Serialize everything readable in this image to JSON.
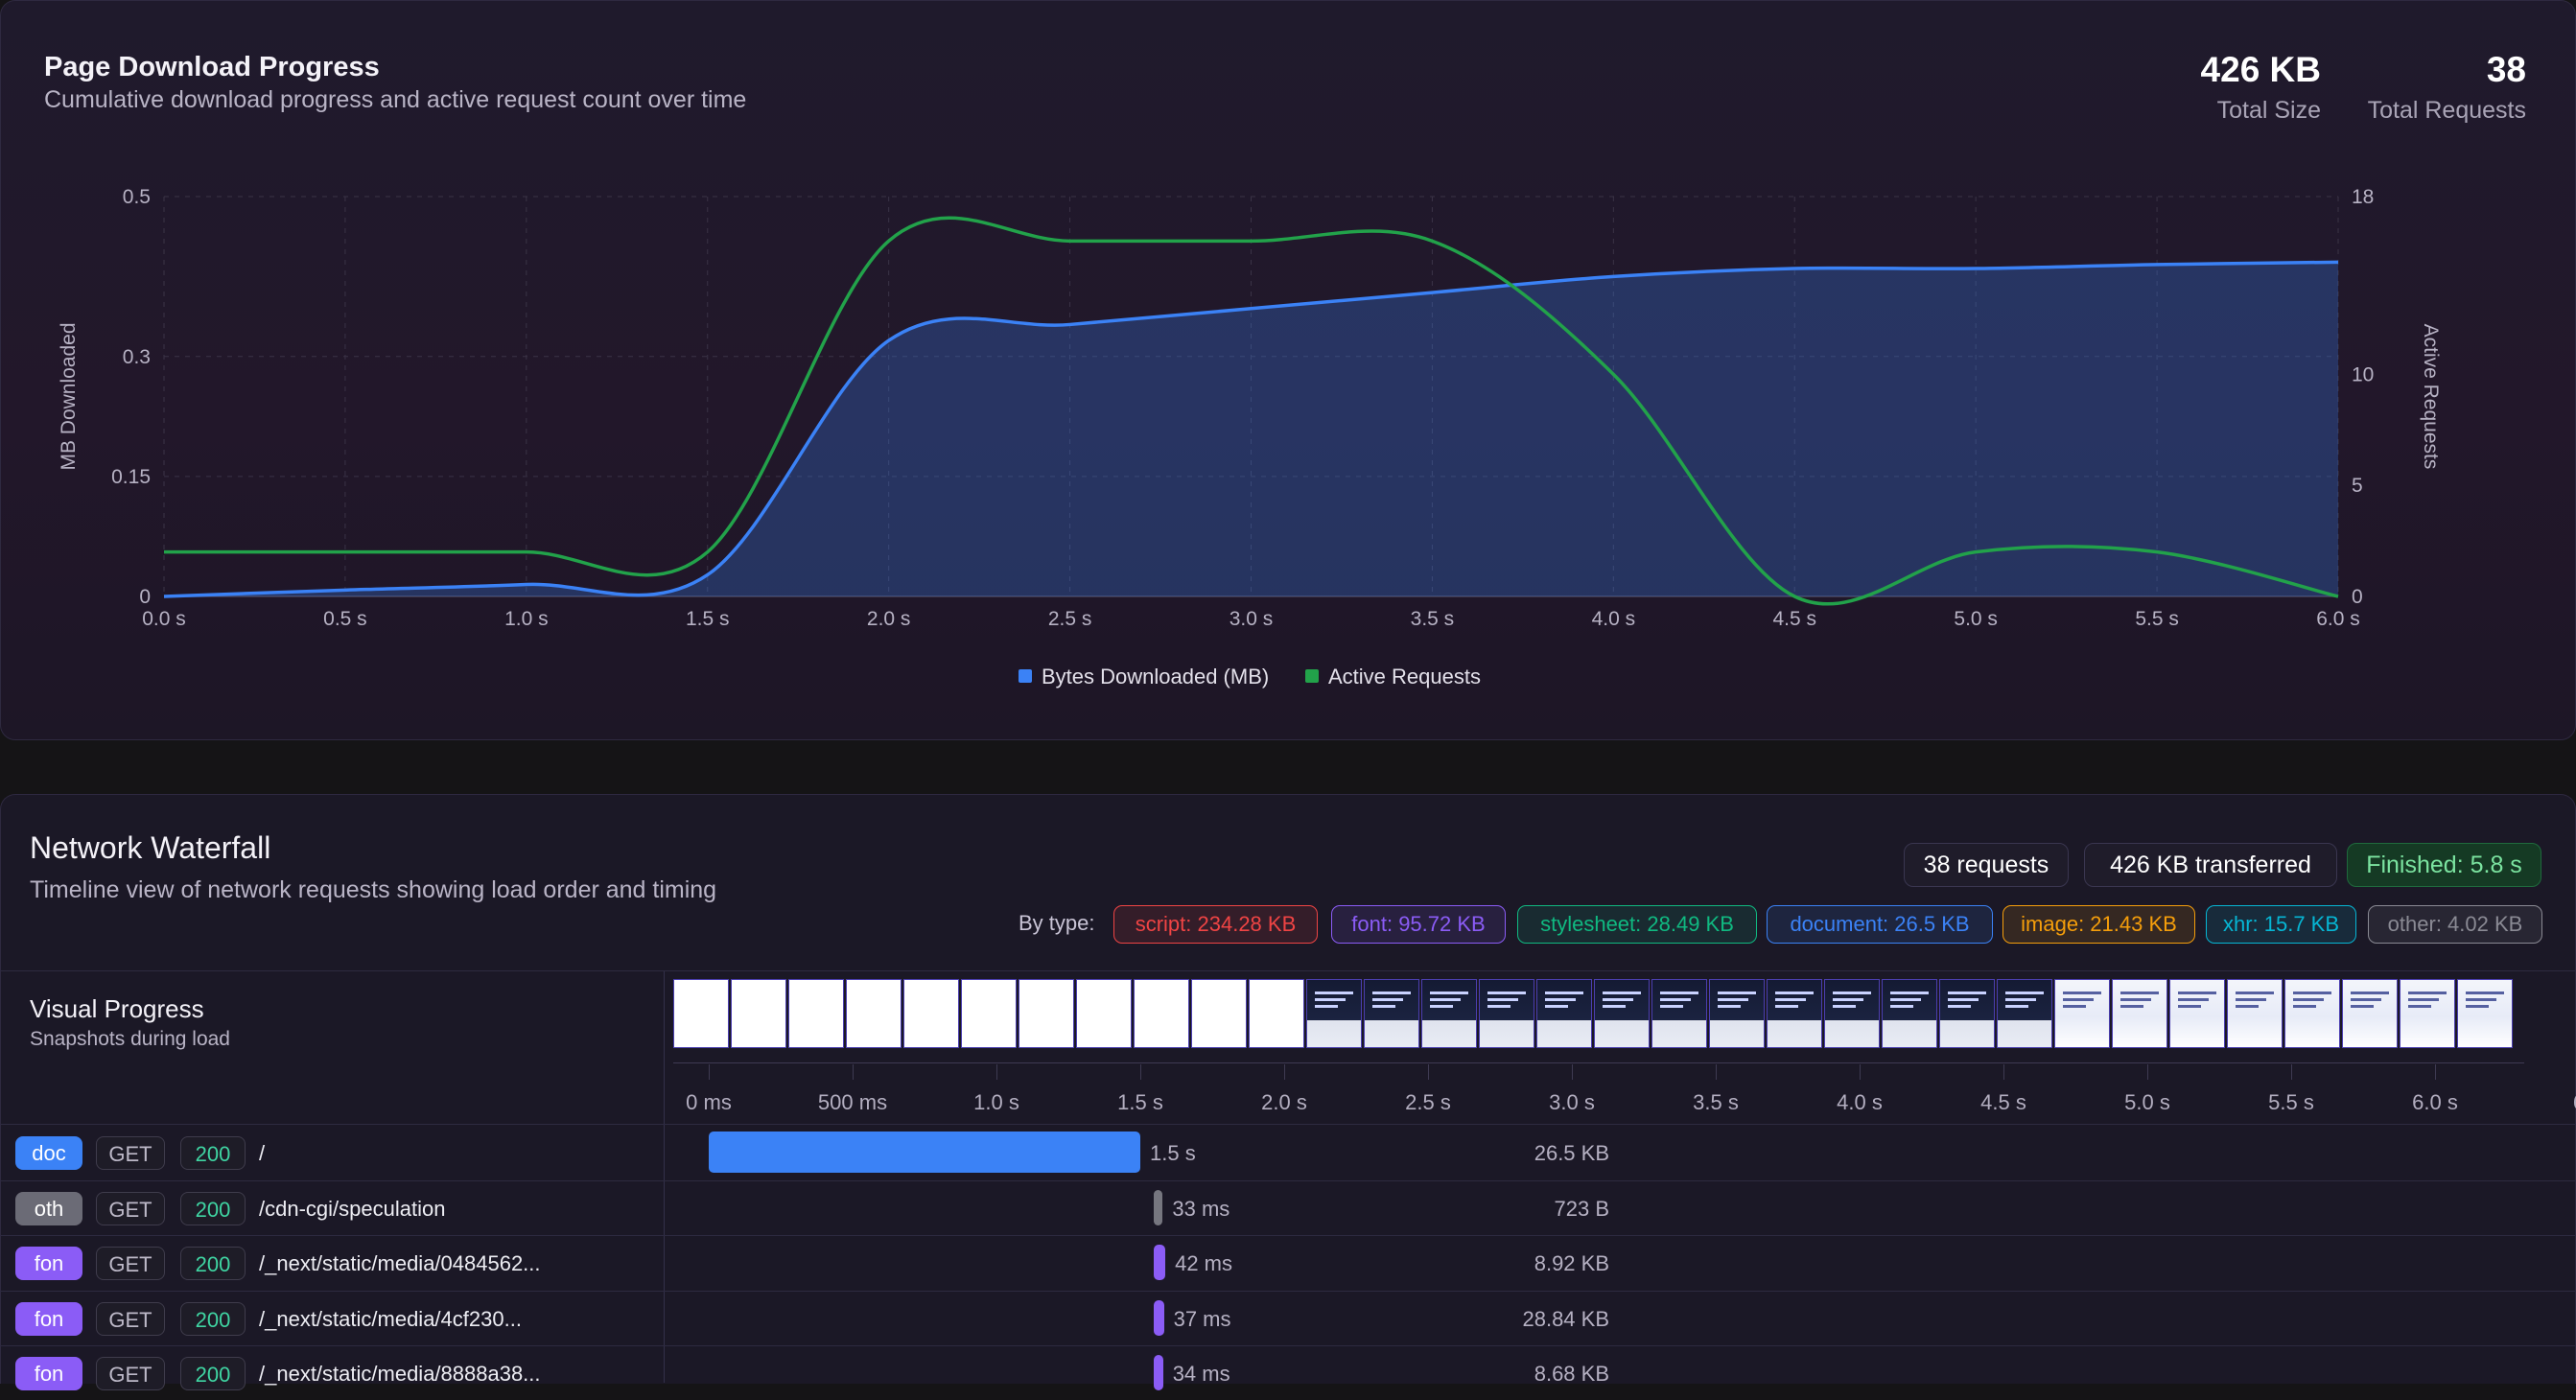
{
  "chart_panel": {
    "title": "Page Download Progress",
    "subtitle": "Cumulative download progress and active request count over time",
    "stats": [
      {
        "value": "426 KB",
        "label": "Total Size"
      },
      {
        "value": "38",
        "label": "Total Requests"
      }
    ]
  },
  "chart_data": {
    "type": "area",
    "title": "Page Download Progress",
    "xlabel": "",
    "ylabel": "MB Downloaded",
    "y2label": "Active Requests",
    "xlim": [
      0,
      6.0
    ],
    "ylim": [
      0,
      0.5
    ],
    "y2lim": [
      0,
      18
    ],
    "x_ticks": [
      "0.0 s",
      "0.5 s",
      "1.0 s",
      "1.5 s",
      "2.0 s",
      "2.5 s",
      "3.0 s",
      "3.5 s",
      "4.0 s",
      "4.5 s",
      "5.0 s",
      "5.5 s",
      "6.0 s"
    ],
    "y_ticks": [
      {
        "v": 0,
        "label": "0"
      },
      {
        "v": 0.15,
        "label": "0.15"
      },
      {
        "v": 0.3,
        "label": "0.3"
      },
      {
        "v": 0.5,
        "label": "0.5"
      }
    ],
    "y2_ticks": [
      {
        "v": 0,
        "label": "0"
      },
      {
        "v": 5,
        "label": "5"
      },
      {
        "v": 10,
        "label": "10"
      },
      {
        "v": 18,
        "label": "18"
      }
    ],
    "series": [
      {
        "name": "Bytes Downloaded (MB)",
        "axis": "left",
        "color": "#3b82f6",
        "fill": true,
        "points": [
          [
            0,
            0
          ],
          [
            0.5,
            0.008
          ],
          [
            1.0,
            0.015
          ],
          [
            1.5,
            0.027
          ],
          [
            2.0,
            0.32
          ],
          [
            2.5,
            0.34
          ],
          [
            3.0,
            0.36
          ],
          [
            3.5,
            0.38
          ],
          [
            4.0,
            0.4
          ],
          [
            4.5,
            0.41
          ],
          [
            5.0,
            0.41
          ],
          [
            5.5,
            0.415
          ],
          [
            6.0,
            0.418
          ]
        ]
      },
      {
        "name": "Active Requests",
        "axis": "right",
        "color": "#22a24a",
        "fill": false,
        "points": [
          [
            0,
            2
          ],
          [
            0.5,
            2
          ],
          [
            1.0,
            2
          ],
          [
            1.5,
            2
          ],
          [
            2.0,
            16
          ],
          [
            2.5,
            16
          ],
          [
            3.0,
            16
          ],
          [
            3.5,
            16
          ],
          [
            4.0,
            10
          ],
          [
            4.5,
            0
          ],
          [
            5.0,
            2
          ],
          [
            5.5,
            2
          ],
          [
            6.0,
            0
          ]
        ]
      }
    ],
    "legend": "bottom-center",
    "grid": true
  },
  "waterfall": {
    "title": "Network Waterfall",
    "subtitle": "Timeline view of network requests showing load order and timing",
    "summary": {
      "requests": "38 requests",
      "transferred": "426 KB transferred",
      "finished": "Finished: 5.8 s"
    },
    "by_type_label": "By type:",
    "types": [
      {
        "label": "script: 234.28 KB",
        "color": "#ef4444"
      },
      {
        "label": "font: 95.72 KB",
        "color": "#8b5cf6"
      },
      {
        "label": "stylesheet: 28.49 KB",
        "color": "#10b981"
      },
      {
        "label": "document: 26.5 KB",
        "color": "#3b82f6"
      },
      {
        "label": "image: 21.43 KB",
        "color": "#f59e0b"
      },
      {
        "label": "xhr: 15.7 KB",
        "color": "#06b6d4"
      },
      {
        "label": "other: 4.02 KB",
        "color": "#8a8a94"
      }
    ],
    "visual_progress": {
      "title": "Visual Progress",
      "subtitle": "Snapshots during load"
    },
    "time_ticks": [
      "0 ms",
      "500 ms",
      "1.0 s",
      "1.5 s",
      "2.0 s",
      "2.5 s",
      "3.0 s",
      "3.5 s",
      "4.0 s",
      "4.5 s",
      "5.0 s",
      "5.5 s",
      "6.0 s",
      "6"
    ],
    "requests": [
      {
        "type": "doc",
        "method": "GET",
        "status": "200",
        "path": "/",
        "size": "26.5 KB",
        "start_ms": 0,
        "duration_ms": 1500,
        "duration": "1.5 s",
        "color": "#3b82f6"
      },
      {
        "type": "oth",
        "method": "GET",
        "status": "200",
        "path": "/cdn-cgi/speculation",
        "size": "723 B",
        "start_ms": 1545,
        "duration_ms": 33,
        "duration": "33 ms",
        "color": "#76767f"
      },
      {
        "type": "fon",
        "method": "GET",
        "status": "200",
        "path": "/_next/static/media/0484562...",
        "size": "8.92 KB",
        "start_ms": 1545,
        "duration_ms": 42,
        "duration": "42 ms",
        "color": "#8b5cf6"
      },
      {
        "type": "fon",
        "method": "GET",
        "status": "200",
        "path": "/_next/static/media/4cf230...",
        "size": "28.84 KB",
        "start_ms": 1545,
        "duration_ms": 37,
        "duration": "37 ms",
        "color": "#8b5cf6"
      },
      {
        "type": "fon",
        "method": "GET",
        "status": "200",
        "path": "/_next/static/media/8888a38...",
        "size": "8.68 KB",
        "start_ms": 1545,
        "duration_ms": 34,
        "duration": "34 ms",
        "color": "#8b5cf6"
      }
    ]
  }
}
